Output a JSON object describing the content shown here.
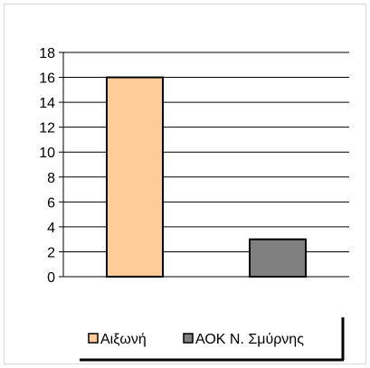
{
  "chart_data": {
    "type": "bar",
    "categories": [
      "Αιξωνή",
      "ΑΟΚ Ν. Σμύρνης"
    ],
    "values": [
      16,
      3
    ],
    "colors": [
      "#FFCC99",
      "#808080"
    ],
    "title": "",
    "xlabel": "",
    "ylabel": "",
    "ylim": [
      0,
      18
    ],
    "yticks": [
      0,
      2,
      4,
      6,
      8,
      10,
      12,
      14,
      16,
      18
    ],
    "grid": true,
    "legend": {
      "position": "bottom",
      "entries": [
        "Αιξωνή",
        "ΑΟΚ Ν. Σμύρνης"
      ]
    }
  }
}
